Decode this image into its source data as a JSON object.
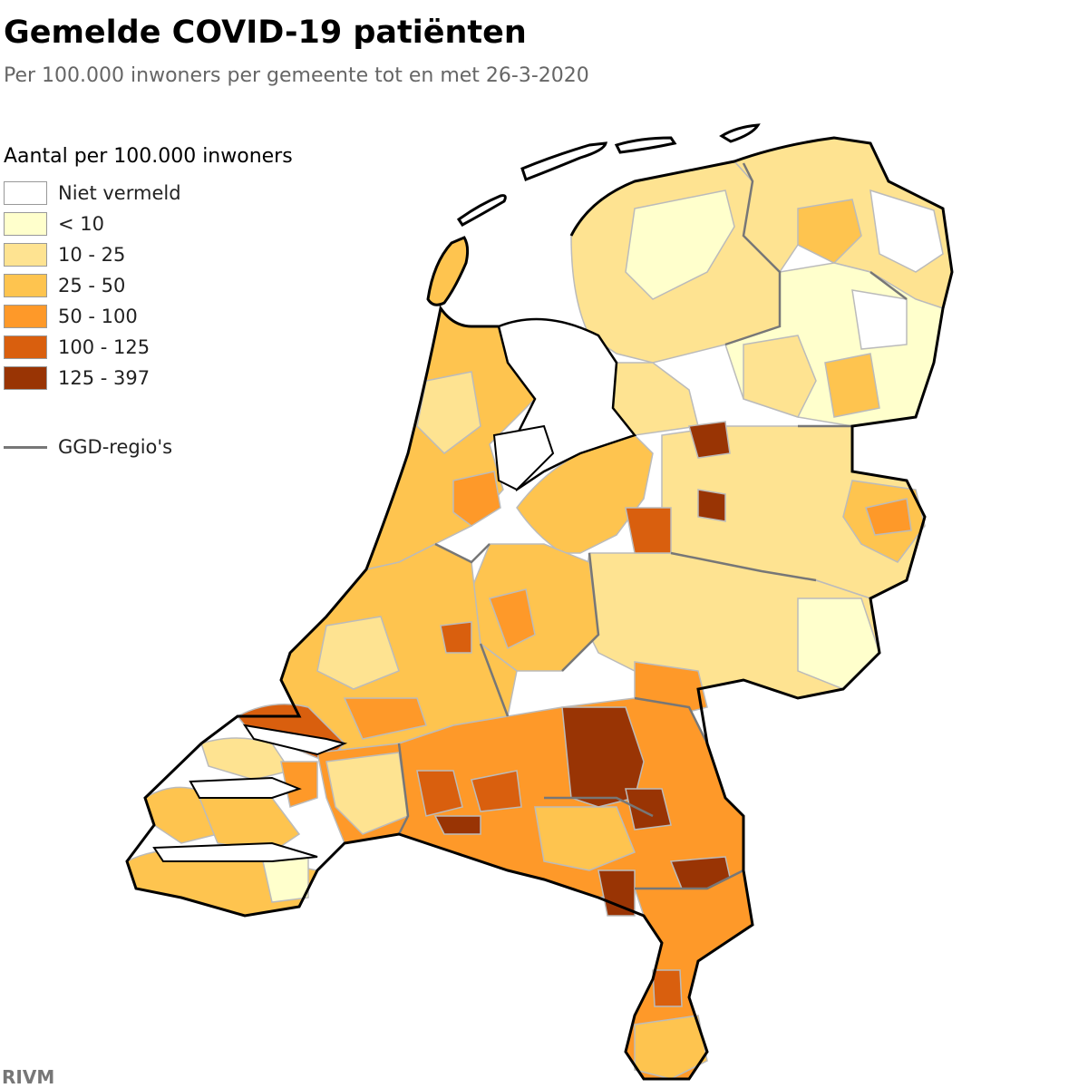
{
  "title": "Gemelde COVID-19 patiënten",
  "subtitle": "Per 100.000 inwoners per gemeente tot en met 26-3-2020",
  "legend": {
    "title": "Aantal per 100.000 inwoners",
    "items": [
      {
        "label": "Niet vermeld",
        "color": "#ffffff"
      },
      {
        "label": "< 10",
        "color": "#ffffcc"
      },
      {
        "label": "10 - 25",
        "color": "#fee391"
      },
      {
        "label": "25 - 50",
        "color": "#fec44f"
      },
      {
        "label": "50 - 100",
        "color": "#fe9929"
      },
      {
        "label": "100 - 125",
        "color": "#d95f0e"
      },
      {
        "label": "125 - 397",
        "color": "#993404"
      }
    ],
    "line_label": "GGD-regio's",
    "line_color": "#777777"
  },
  "source": "RIVM"
}
